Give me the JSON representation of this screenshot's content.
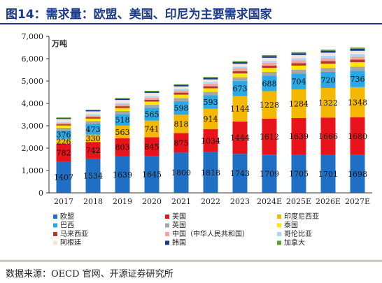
{
  "title": "图14：需求量：欧盟、美国、印尼为主要需求国家",
  "source": "数据来源：OECD 官网、开源证券研究所",
  "chart_data": {
    "type": "bar",
    "stacked": true,
    "unit_label": "万吨",
    "categories": [
      "2017",
      "2018",
      "2019",
      "2020",
      "2021",
      "2022",
      "2023",
      "2024E",
      "2025E",
      "2026E",
      "2027E"
    ],
    "ylim": [
      0,
      7000
    ],
    "yticks": [
      "0",
      "1,000",
      "2,000",
      "3,000",
      "4,000",
      "5,000",
      "6,000",
      "7,000"
    ],
    "legend_position": "bottom",
    "series": [
      {
        "name": "欧盟",
        "color": "#1f6fc4",
        "values": [
          1407,
          1534,
          1639,
          1645,
          1800,
          1818,
          1743,
          1709,
          1705,
          1701,
          1698
        ],
        "labeled": true
      },
      {
        "name": "美国",
        "color": "#e8131b",
        "values": [
          782,
          742,
          803,
          845,
          875,
          1034,
          1444,
          1612,
          1639,
          1666,
          1680
        ],
        "labeled": true
      },
      {
        "name": "印度尼西亚",
        "color": "#f5b800",
        "values": [
          226,
          330,
          563,
          741,
          818,
          914,
          1144,
          1228,
          1284,
          1322,
          1348
        ],
        "labeled": true
      },
      {
        "name": "巴西",
        "color": "#2ba9e6",
        "values": [
          376,
          473,
          518,
          565,
          598,
          593,
          673,
          688,
          704,
          720,
          736
        ],
        "labeled": true
      },
      {
        "name": "英国",
        "color": "#a6a6a6",
        "values": [
          120,
          130,
          140,
          145,
          150,
          155,
          165,
          170,
          175,
          180,
          185
        ],
        "labeled": false
      },
      {
        "name": "泰国",
        "color": "#ffe600",
        "values": [
          100,
          110,
          130,
          140,
          150,
          160,
          175,
          180,
          185,
          190,
          195
        ],
        "labeled": false
      },
      {
        "name": "马来西亚",
        "color": "#b33a2a",
        "values": [
          60,
          70,
          80,
          85,
          90,
          95,
          100,
          105,
          110,
          115,
          120
        ],
        "labeled": false
      },
      {
        "name": "中国（中华人民共和国）",
        "color": "#f2a6a0",
        "values": [
          60,
          70,
          80,
          90,
          100,
          110,
          120,
          125,
          130,
          135,
          140
        ],
        "labeled": false
      },
      {
        "name": "哥伦比亚",
        "color": "#a9d8f2",
        "values": [
          50,
          55,
          60,
          65,
          70,
          75,
          80,
          85,
          90,
          95,
          100
        ],
        "labeled": false
      },
      {
        "name": "阿根廷",
        "color": "#f2e6dc",
        "values": [
          120,
          130,
          140,
          150,
          110,
          120,
          130,
          135,
          140,
          145,
          150
        ],
        "labeled": false
      },
      {
        "name": "韩国",
        "color": "#1b3a8a",
        "values": [
          40,
          45,
          50,
          55,
          60,
          65,
          70,
          75,
          80,
          85,
          90
        ],
        "labeled": false
      },
      {
        "name": "加拿大",
        "color": "#5aa02c",
        "values": [
          30,
          32,
          35,
          38,
          40,
          42,
          45,
          48,
          50,
          52,
          55
        ],
        "labeled": false
      }
    ]
  }
}
